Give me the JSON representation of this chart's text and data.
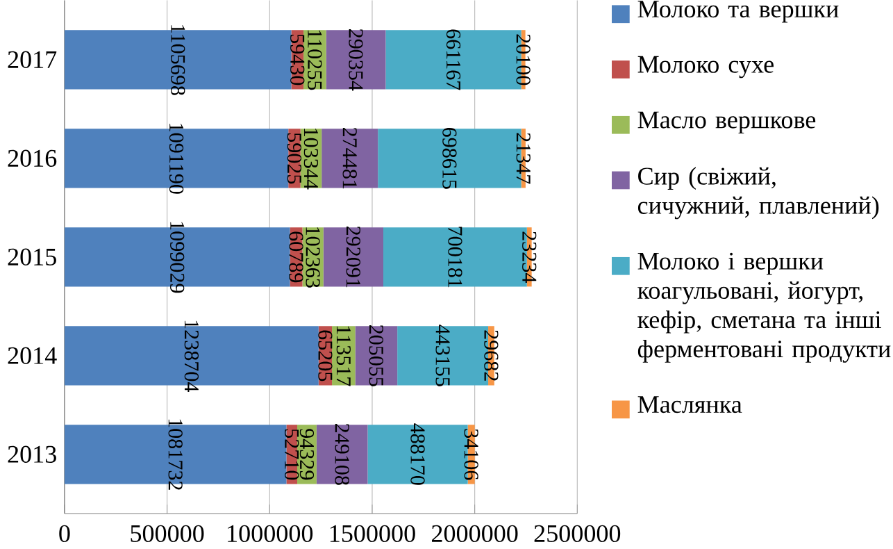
{
  "chart_data": {
    "type": "bar",
    "orientation": "horizontal",
    "stacked": true,
    "categories": [
      "2017",
      "2016",
      "2015",
      "2014",
      "2013"
    ],
    "series": [
      {
        "name": "Молоко та вершки",
        "color": "#4f81bd",
        "values": [
          1105698,
          1091190,
          1099029,
          1238704,
          1081732
        ]
      },
      {
        "name": "Молоко сухе",
        "color": "#c0504d",
        "values": [
          59430,
          59025,
          60789,
          65205,
          52710
        ]
      },
      {
        "name": "Масло вершкове",
        "color": "#9bbb59",
        "values": [
          110255,
          103344,
          102363,
          113517,
          94329
        ]
      },
      {
        "name": "Сир (свіжий, сичужний, плавлений)",
        "color": "#8064a2",
        "values": [
          290354,
          274481,
          292091,
          205055,
          249108
        ]
      },
      {
        "name": "Молоко і вершки коагульовані, йогурт, кефір, сметана та інші ферментовані продукти",
        "color": "#4bacc6",
        "values": [
          661167,
          698615,
          700181,
          443155,
          488170
        ]
      },
      {
        "name": "Маслянка",
        "color": "#f79646",
        "values": [
          20100,
          21347,
          23234,
          29682,
          34106
        ]
      }
    ],
    "xlim": [
      0,
      2500000
    ],
    "xticks": [
      0,
      500000,
      1000000,
      1500000,
      2000000,
      2500000
    ],
    "grid": "x",
    "legend": "right",
    "data_labels": true
  }
}
